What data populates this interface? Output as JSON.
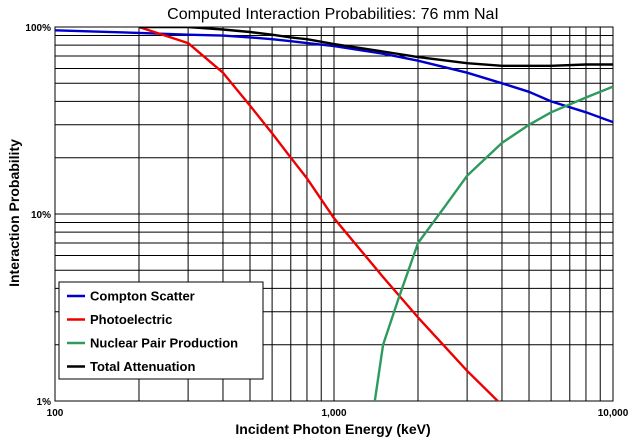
{
  "chart_data": {
    "type": "line",
    "title": "Computed Interaction Probabilities:  76 mm NaI",
    "xlabel": "Incident Photon Energy (keV)",
    "ylabel": "Interaction Probability",
    "x_scale": "log",
    "y_scale": "log",
    "xlim": [
      100,
      10000
    ],
    "ylim": [
      1,
      100
    ],
    "x_tick_labels": [
      {
        "value": 100,
        "label": "100"
      },
      {
        "value": 1000,
        "label": "1,000"
      },
      {
        "value": 10000,
        "label": "10,000"
      }
    ],
    "y_tick_labels": [
      {
        "value": 100,
        "label": "100%"
      },
      {
        "value": 10,
        "label": "10%"
      },
      {
        "value": 1,
        "label": "1%"
      }
    ],
    "grid": true,
    "legend_position": "bottom-left",
    "series": [
      {
        "name": "Compton Scatter",
        "color": "#0000cc",
        "x": [
          100,
          200,
          300,
          400,
          500,
          600,
          700,
          800,
          1000,
          1500,
          2000,
          3000,
          4000,
          5000,
          6000,
          8000,
          10000
        ],
        "y": [
          96,
          93,
          91,
          90,
          88,
          86,
          84,
          82,
          79,
          72,
          66,
          57,
          50,
          45,
          40,
          35,
          31
        ]
      },
      {
        "name": "Photoelectric",
        "color": "#ee0000",
        "x": [
          200,
          300,
          400,
          500,
          600,
          700,
          800,
          1000,
          1500,
          2000,
          3000,
          4000
        ],
        "y": [
          100,
          82,
          57,
          38,
          27,
          20,
          15.5,
          9.5,
          4.6,
          2.8,
          1.45,
          0.95
        ]
      },
      {
        "name": "Nuclear Pair Production",
        "color": "#2e9a5e",
        "x": [
          1400,
          1500,
          1700,
          2000,
          2500,
          3000,
          4000,
          5000,
          6000,
          8000,
          10000
        ],
        "y": [
          1,
          2,
          3.5,
          7,
          11,
          16,
          24,
          30,
          35,
          42,
          48
        ]
      },
      {
        "name": "Total Attenuation",
        "color": "#000000",
        "x": [
          200,
          300,
          400,
          500,
          600,
          700,
          800,
          1000,
          1500,
          2000,
          3000,
          4000,
          5000,
          6000,
          8000,
          10000
        ],
        "y": [
          100,
          100,
          97,
          94,
          91,
          88,
          86,
          81,
          74,
          69,
          64,
          62,
          62,
          62,
          63,
          63
        ]
      }
    ]
  }
}
